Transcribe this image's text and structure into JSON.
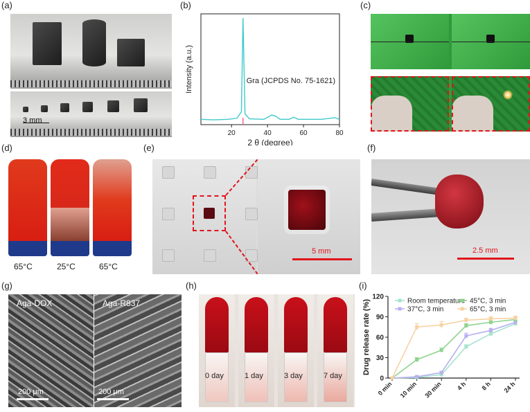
{
  "panels": {
    "a": {
      "label": "(a)",
      "scale": "3 mm"
    },
    "b": {
      "label": "(b)",
      "annotation": "Gra (JCPDS No. 75-1621)"
    },
    "c": {
      "label": "(c)"
    },
    "d": {
      "label": "(d)",
      "temps": [
        "65°C",
        "25°C",
        "65°C"
      ]
    },
    "e": {
      "label": "(e)",
      "scale": "5 mm"
    },
    "f": {
      "label": "(f)",
      "scale": "2.5 mm"
    },
    "g": {
      "label": "(g)",
      "left_title": "Aga-DOX",
      "right_title": "Aga-R837",
      "scale_left": "200 μm",
      "scale_right": "200 μm"
    },
    "h": {
      "label": "(h)",
      "days": [
        "0 day",
        "1 day",
        "3 day",
        "7 day"
      ]
    },
    "i": {
      "label": "(i)"
    }
  },
  "colors": {
    "xrd_line": "#3fc9cc",
    "room": "#a6e3cf",
    "c37": "#b7b0ef",
    "c45": "#8ed38f",
    "c65": "#f7d2a4",
    "gel_red": "#c9101a"
  },
  "chart_data": [
    {
      "type": "line",
      "panel": "b",
      "xlabel": "2 θ (degree)",
      "ylabel": "Intensity (a.u.)",
      "xlim": [
        3,
        80
      ],
      "xticks": [
        20,
        40,
        60,
        80
      ],
      "series": [
        {
          "x": [
            3,
            10,
            18,
            23,
            25.5,
            26.4,
            27.5,
            30,
            38,
            42.3,
            44.5,
            47,
            52,
            54.6,
            57,
            70,
            77.4,
            80
          ],
          "y": [
            0.05,
            0.045,
            0.05,
            0.06,
            0.12,
            1.0,
            0.1,
            0.055,
            0.05,
            0.09,
            0.08,
            0.05,
            0.05,
            0.07,
            0.05,
            0.05,
            0.065,
            0.05
          ]
        }
      ],
      "reference_peak": 26.4,
      "annotation": "Gra (JCPDS No. 75-1621)"
    },
    {
      "type": "line",
      "panel": "i",
      "title": "",
      "ylabel": "Drug release rate (%)",
      "xlabel": "",
      "categories": [
        "0 min",
        "10 min",
        "30 min",
        "4 h",
        "8 h",
        "24 h"
      ],
      "ylim": [
        0,
        120
      ],
      "yticks": [
        0,
        30,
        60,
        90,
        120
      ],
      "legend": "top",
      "series": [
        {
          "name": "Room temperature",
          "values": [
            0,
            1,
            5,
            46,
            65,
            80
          ]
        },
        {
          "name": "37°C, 3 min",
          "values": [
            0,
            2,
            8,
            62,
            70,
            82
          ]
        },
        {
          "name": "45°C, 3 min",
          "values": [
            0,
            27,
            41,
            77,
            82,
            86
          ]
        },
        {
          "name": "65°C, 3 min",
          "values": [
            0,
            75,
            78,
            85,
            87,
            88
          ]
        }
      ],
      "errors": [
        [
          0,
          1,
          2,
          3,
          3,
          3
        ],
        [
          0,
          1,
          2,
          4,
          3,
          3
        ],
        [
          0,
          3,
          3,
          3,
          3,
          3
        ],
        [
          0,
          5,
          5,
          3,
          3,
          3
        ]
      ]
    }
  ]
}
